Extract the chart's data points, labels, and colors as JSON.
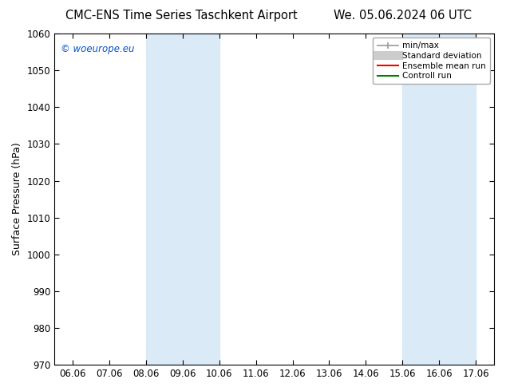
{
  "title_left": "CMC-ENS Time Series Taschkent Airport",
  "title_right": "We. 05.06.2024 06 UTC",
  "ylabel": "Surface Pressure (hPa)",
  "ylim": [
    970,
    1060
  ],
  "yticks": [
    970,
    980,
    990,
    1000,
    1010,
    1020,
    1030,
    1040,
    1050,
    1060
  ],
  "xtick_labels": [
    "06.06",
    "07.06",
    "08.06",
    "09.06",
    "10.06",
    "11.06",
    "12.06",
    "13.06",
    "14.06",
    "15.06",
    "16.06",
    "17.06"
  ],
  "xtick_positions": [
    0,
    1,
    2,
    3,
    4,
    5,
    6,
    7,
    8,
    9,
    10,
    11
  ],
  "xlim": [
    -0.5,
    11.5
  ],
  "shaded_regions": [
    {
      "x_start": 2.0,
      "x_end": 4.0,
      "color": "#dbeaf7"
    },
    {
      "x_start": 9.0,
      "x_end": 11.0,
      "color": "#dbeaf7"
    }
  ],
  "watermark": "© woeurope.eu",
  "watermark_color": "#0055cc",
  "legend_entries": [
    {
      "label": "min/max",
      "color": "#999999",
      "linestyle": "-",
      "linewidth": 1.2,
      "type": "line_with_caps"
    },
    {
      "label": "Standard deviation",
      "color": "#cccccc",
      "linestyle": "-",
      "linewidth": 8,
      "type": "thick_line"
    },
    {
      "label": "Ensemble mean run",
      "color": "#ff0000",
      "linestyle": "-",
      "linewidth": 1.5,
      "type": "line"
    },
    {
      "label": "Controll run",
      "color": "#008000",
      "linestyle": "-",
      "linewidth": 1.5,
      "type": "line"
    }
  ],
  "background_color": "#ffffff",
  "title_fontsize": 10.5,
  "axis_fontsize": 9,
  "tick_fontsize": 8.5
}
